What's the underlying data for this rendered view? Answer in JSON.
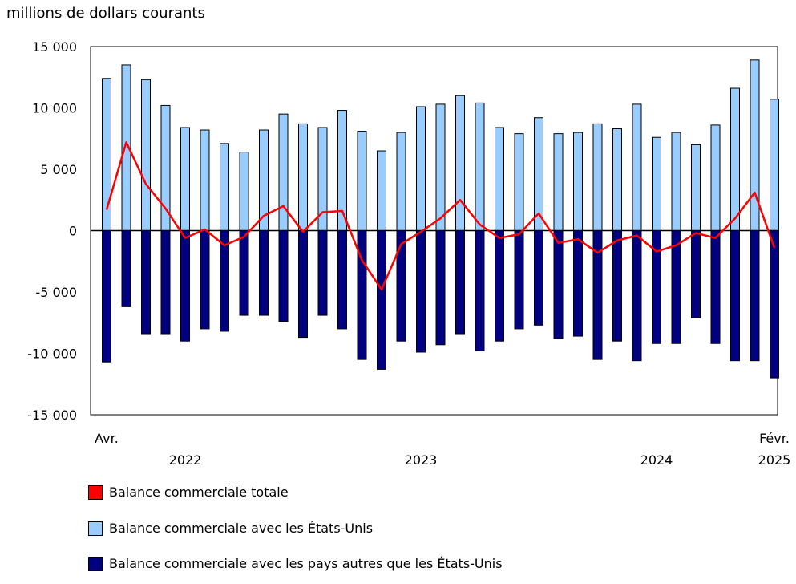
{
  "chart_data": {
    "type": "bar",
    "title": "millions de dollars courants",
    "ylim": [
      -15000,
      15000
    ],
    "yticks": [
      15000,
      10000,
      5000,
      0,
      -5000,
      -10000,
      -15000
    ],
    "ytick_labels": [
      "15 000",
      "10 000",
      "5 000",
      "0",
      "-5 000",
      "-10 000",
      "-15 000"
    ],
    "grid": false,
    "x_month_labels": [
      {
        "index": 0,
        "label": "Avr."
      },
      {
        "index": 34,
        "label": "Févr."
      }
    ],
    "x_year_labels": [
      {
        "index": 4,
        "label": "2022"
      },
      {
        "index": 16,
        "label": "2023"
      },
      {
        "index": 28,
        "label": "2024"
      },
      {
        "index": 34,
        "label": "2025"
      }
    ],
    "categories": [
      "2022-04",
      "2022-05",
      "2022-06",
      "2022-07",
      "2022-08",
      "2022-09",
      "2022-10",
      "2022-11",
      "2022-12",
      "2023-01",
      "2023-02",
      "2023-03",
      "2023-04",
      "2023-05",
      "2023-06",
      "2023-07",
      "2023-08",
      "2023-09",
      "2023-10",
      "2023-11",
      "2023-12",
      "2024-01",
      "2024-02",
      "2024-03",
      "2024-04",
      "2024-05",
      "2024-06",
      "2024-07",
      "2024-08",
      "2024-09",
      "2024-10",
      "2024-11",
      "2024-12",
      "2025-01",
      "2025-02"
    ],
    "series": [
      {
        "name": "Balance commerciale totale",
        "kind": "line",
        "color": "#ff0000",
        "values": [
          1700,
          7200,
          3800,
          1800,
          -600,
          100,
          -1200,
          -500,
          1200,
          2000,
          -100,
          1500,
          1600,
          -2400,
          -4800,
          -1100,
          -100,
          1000,
          2500,
          500,
          -600,
          -300,
          1400,
          -1000,
          -700,
          -1800,
          -800,
          -400,
          -1700,
          -1200,
          -200,
          -600,
          1000,
          3100,
          -1400
        ]
      },
      {
        "name": "Balance commerciale avec les États-Unis",
        "kind": "bar",
        "color": "#99ccff",
        "values": [
          12400,
          13500,
          12300,
          10200,
          8400,
          8200,
          7100,
          6400,
          8200,
          9500,
          8700,
          8400,
          9800,
          8100,
          6500,
          8000,
          10100,
          10300,
          11000,
          10400,
          8400,
          7900,
          9200,
          7900,
          8000,
          8700,
          8300,
          10300,
          7600,
          8000,
          7000,
          8600,
          11600,
          13900,
          10700
        ]
      },
      {
        "name": "Balance commerciale avec les pays autres que les États-Unis",
        "kind": "bar",
        "color": "#000080",
        "values": [
          -10700,
          -6200,
          -8400,
          -8400,
          -9000,
          -8000,
          -8200,
          -6900,
          -6900,
          -7400,
          -8700,
          -6900,
          -8000,
          -10500,
          -11300,
          -9000,
          -9900,
          -9300,
          -8400,
          -9800,
          -9000,
          -8000,
          -7700,
          -8800,
          -8600,
          -10500,
          -9000,
          -10600,
          -9200,
          -9200,
          -7100,
          -9200,
          -10600,
          -10600,
          -12000
        ]
      }
    ],
    "legend_position": "bottom"
  }
}
